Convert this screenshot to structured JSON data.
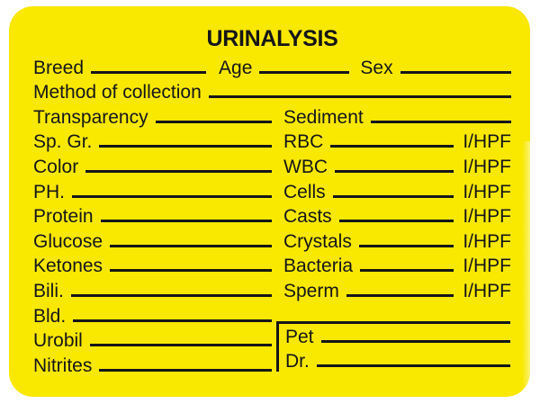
{
  "title": "URINALYSIS",
  "colors": {
    "label_background": "#F9E800",
    "ink": "#161616"
  },
  "header": {
    "breed": "Breed",
    "age": "Age",
    "sex": "Sex",
    "method": "Method of collection"
  },
  "rows": {
    "left": [
      "Transparency",
      "Sp. Gr.",
      "Color",
      "PH.",
      "Protein",
      "Glucose",
      "Ketones",
      "Bili.",
      "Bld.",
      "Urobil",
      "Nitrites"
    ],
    "right_column": {
      "sediment": "Sediment",
      "entries": [
        {
          "label": "RBC",
          "unit": "I/HPF"
        },
        {
          "label": "WBC",
          "unit": "I/HPF"
        },
        {
          "label": "Cells",
          "unit": "I/HPF"
        },
        {
          "label": "Casts",
          "unit": "I/HPF"
        },
        {
          "label": "Crystals",
          "unit": "I/HPF"
        },
        {
          "label": "Bacteria",
          "unit": "I/HPF"
        },
        {
          "label": "Sperm",
          "unit": "I/HPF"
        }
      ]
    }
  },
  "signature": {
    "pet": "Pet",
    "dr": "Dr."
  }
}
